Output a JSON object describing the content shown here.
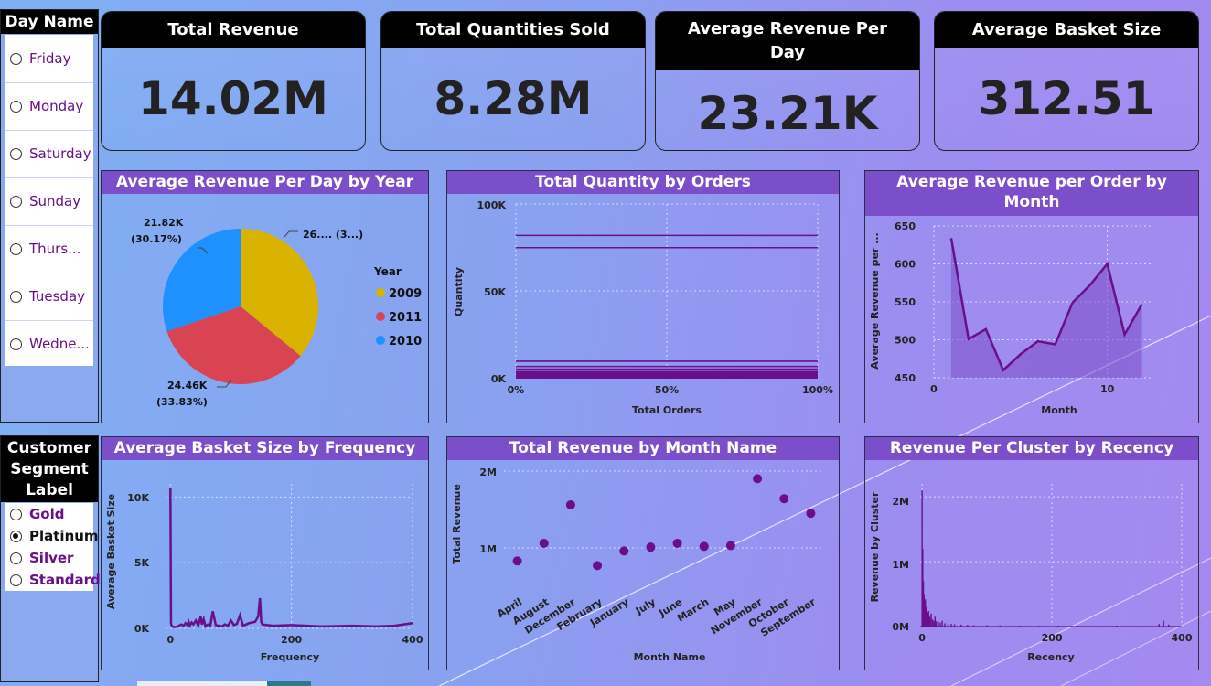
{
  "day_slicer": {
    "title": "Day Name",
    "items": [
      "Friday",
      "Monday",
      "Saturday",
      "Sunday",
      "Thurs...",
      "Tuesday",
      "Wedne..."
    ]
  },
  "segment_slicer": {
    "title_lines": [
      "Customer",
      "Segment",
      "Label"
    ],
    "items": [
      "Gold",
      "Platinum",
      "Silver",
      "Standard"
    ],
    "selected": "Platinum"
  },
  "kpis": {
    "total_revenue": {
      "label": "Total Revenue",
      "value": "14.02M"
    },
    "total_quantities": {
      "label": "Total Quantities Sold",
      "value": "8.28M"
    },
    "avg_revenue_day": {
      "label_lines": [
        "Average Revenue Per",
        "Day"
      ],
      "value": "23.21K"
    },
    "avg_basket": {
      "label": "Average Basket Size",
      "value": "312.51"
    }
  },
  "colors": {
    "title_bar": "#7b4fc9",
    "series": "#6a0f8a",
    "pie_2009": "#d9b300",
    "pie_2011": "#d94452",
    "pie_2010": "#1e90ff"
  },
  "chart_data": [
    {
      "id": "pie",
      "type": "pie",
      "title": "Average Revenue Per Day by Year",
      "legend_title": "Year",
      "legend_position": "right",
      "slices": [
        {
          "name": "2009",
          "value": 26.0,
          "label": "26.... (3...)"
        },
        {
          "name": "2011",
          "value": 24.46,
          "label": "24.46K",
          "pct": "(33.83%)"
        },
        {
          "name": "2010",
          "value": 21.82,
          "label": "21.82K",
          "pct": "(30.17%)"
        }
      ]
    },
    {
      "id": "qty",
      "type": "bar",
      "title": "Total Quantity by Orders",
      "xlabel": "Total Orders",
      "ylabel": "Quantity",
      "xticks": [
        "0%",
        "50%",
        "100%"
      ],
      "yticks": [
        "0K",
        "50K",
        "100K"
      ],
      "ylim": [
        0,
        100000
      ],
      "values": [
        82000,
        75000,
        10000,
        7000,
        5500,
        4000,
        2000
      ]
    },
    {
      "id": "rev_month",
      "type": "area",
      "title_lines": [
        "Average Revenue per Order by",
        "Month"
      ],
      "xlabel": "Month",
      "ylabel": "Average Revenue per ...",
      "xlim": [
        0,
        12.5
      ],
      "ylim": [
        450,
        650
      ],
      "xticks": [
        0,
        10
      ],
      "yticks": [
        450,
        500,
        550,
        600,
        650
      ],
      "x": [
        1,
        2,
        3,
        4,
        5,
        6,
        7,
        8,
        9,
        10,
        11,
        12
      ],
      "y": [
        634,
        501,
        514,
        460,
        481,
        498,
        494,
        549,
        572,
        600,
        507,
        547
      ]
    },
    {
      "id": "basket_freq",
      "type": "line",
      "title": "Average Basket Size by Frequency",
      "xlabel": "Frequency",
      "ylabel": "Average Basket Size",
      "xlim": [
        -8,
        400
      ],
      "ylim": [
        0,
        11000
      ],
      "xticks": [
        0,
        200,
        400
      ],
      "yticks": [
        "0K",
        "5K",
        "10K"
      ],
      "x": [
        0,
        1,
        2,
        3,
        5,
        8,
        12,
        18,
        22,
        25,
        28,
        30,
        32,
        35,
        38,
        42,
        46,
        50,
        52,
        55,
        58,
        62,
        66,
        70,
        75,
        80,
        85,
        90,
        95,
        100,
        105,
        110,
        115,
        120,
        125,
        130,
        140,
        145,
        148,
        150,
        152,
        160,
        170,
        200,
        250,
        300,
        340,
        370,
        400
      ],
      "y": [
        10700,
        400,
        200,
        150,
        120,
        100,
        150,
        300,
        200,
        400,
        250,
        500,
        200,
        450,
        300,
        600,
        200,
        900,
        300,
        700,
        150,
        300,
        200,
        1300,
        250,
        200,
        150,
        300,
        200,
        600,
        250,
        350,
        1000,
        200,
        300,
        400,
        500,
        900,
        2300,
        500,
        300,
        250,
        200,
        250,
        150,
        200,
        150,
        200,
        400
      ]
    },
    {
      "id": "rev_monthname",
      "type": "scatter",
      "title": "Total Revenue by Month Name",
      "xlabel": "Month Name",
      "ylabel": "Total Revenue",
      "ylim": [
        0,
        2000000
      ],
      "yticks": [
        "1M",
        "2M"
      ],
      "categories": [
        "April",
        "August",
        "December",
        "February",
        "January",
        "July",
        "June",
        "March",
        "May",
        "November",
        "October",
        "September"
      ],
      "values": [
        830000,
        1060000,
        1560000,
        770000,
        960000,
        1010000,
        1060000,
        1020000,
        1030000,
        1900000,
        1640000,
        1450000
      ]
    },
    {
      "id": "cluster_recency",
      "type": "bar",
      "title": "Revenue Per Cluster by Recency",
      "xlabel": "Recency",
      "ylabel": "Revenue by Cluster",
      "xlim": [
        -3,
        400
      ],
      "ylim": [
        0,
        2200000
      ],
      "xticks": [
        0,
        200,
        400
      ],
      "yticks": [
        "0M",
        "1M",
        "2M"
      ],
      "x": [
        0,
        1,
        2,
        3,
        4,
        5,
        6,
        7,
        8,
        9,
        10,
        11,
        12,
        14,
        16,
        18,
        20,
        22,
        25,
        28,
        31,
        35,
        40,
        45,
        50,
        60,
        70,
        80,
        100,
        120,
        150,
        180,
        210,
        240,
        270,
        300,
        330,
        365,
        372,
        380
      ],
      "y": [
        2100000,
        1200000,
        700000,
        500000,
        380000,
        420000,
        300000,
        260000,
        220000,
        190000,
        240000,
        160000,
        140000,
        200000,
        110000,
        90000,
        150000,
        80000,
        70000,
        60000,
        90000,
        50000,
        45000,
        40000,
        35000,
        30000,
        25000,
        20000,
        22000,
        18000,
        15000,
        12000,
        14000,
        10000,
        12000,
        15000,
        10000,
        40000,
        90000,
        30000
      ]
    }
  ]
}
